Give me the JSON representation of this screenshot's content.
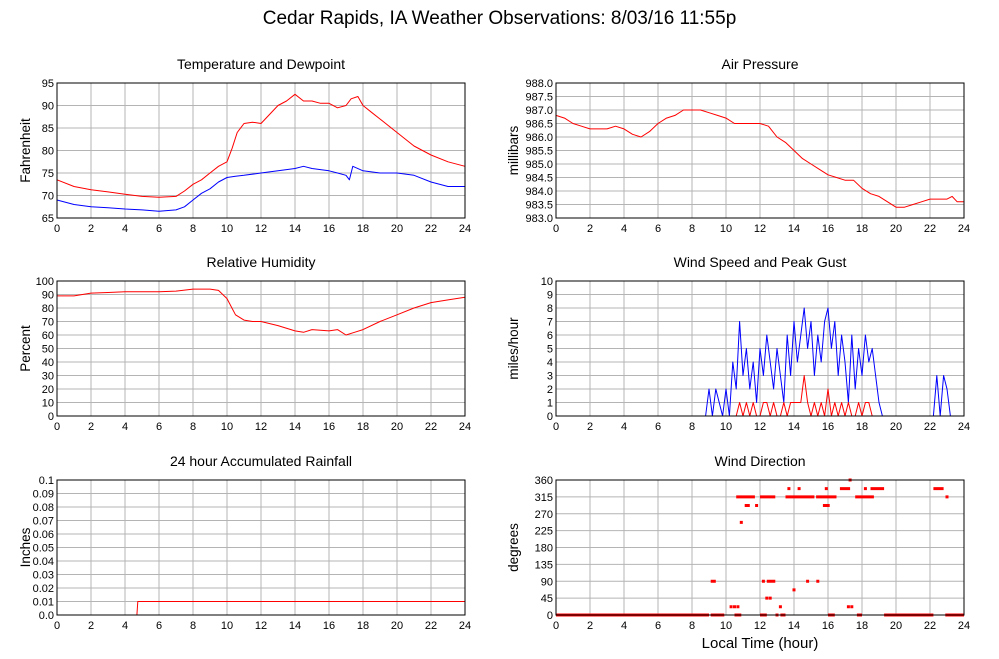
{
  "page": {
    "title": "Cedar Rapids, IA Weather Observations: 8/03/16 11:55p",
    "xlabel": "Local Time (hour)"
  },
  "colors": {
    "red": "#ff0000",
    "blue": "#0000ff",
    "grid": "#b4b4b4",
    "frame": "#000000"
  },
  "chart_data": [
    {
      "id": "temp",
      "type": "line",
      "title": "Temperature and Dewpoint",
      "ylabel": "Fahrenheit",
      "xlim": [
        0,
        24
      ],
      "ylim": [
        65,
        95
      ],
      "xticks": [
        0,
        2,
        4,
        6,
        8,
        10,
        12,
        14,
        16,
        18,
        20,
        22,
        24
      ],
      "yticks": [
        65,
        70,
        75,
        80,
        85,
        90,
        95
      ],
      "grid": true,
      "series": [
        {
          "color": "#ff0000",
          "x": [
            0,
            1,
            2,
            3,
            4,
            5,
            6,
            7,
            7.5,
            8,
            8.5,
            9,
            9.5,
            10,
            10.3,
            10.6,
            11,
            11.5,
            12,
            12.5,
            13,
            13.5,
            14,
            14.5,
            15,
            15.5,
            16,
            16.5,
            17,
            17.3,
            17.7,
            18,
            18.5,
            19,
            20,
            21,
            22,
            23,
            24
          ],
          "y": [
            73.5,
            72,
            71.3,
            70.8,
            70.3,
            69.8,
            69.6,
            69.8,
            71,
            72.5,
            73.5,
            75,
            76.5,
            77.5,
            80.5,
            84,
            86,
            86.3,
            86,
            88,
            90,
            91,
            92.5,
            91,
            91,
            90.5,
            90.5,
            89.5,
            90,
            91.5,
            92,
            90,
            88.5,
            87,
            84,
            81,
            79,
            77.5,
            76.5
          ]
        },
        {
          "color": "#0000ff",
          "x": [
            0,
            1,
            2,
            3,
            4,
            5,
            6,
            7,
            7.5,
            8,
            8.5,
            9,
            9.5,
            10,
            10.5,
            11,
            12,
            13,
            14,
            14.5,
            15,
            16,
            16.5,
            17,
            17.2,
            17.4,
            18,
            19,
            20,
            21,
            22,
            23,
            24
          ],
          "y": [
            69,
            68,
            67.5,
            67.3,
            67,
            66.8,
            66.5,
            66.8,
            67.5,
            69,
            70.5,
            71.5,
            73,
            74,
            74.3,
            74.5,
            75,
            75.5,
            76,
            76.5,
            76,
            75.5,
            75,
            74.5,
            73.5,
            76.5,
            75.5,
            75,
            75,
            74.5,
            73,
            72,
            72
          ]
        }
      ]
    },
    {
      "id": "pressure",
      "type": "line",
      "title": "Air Pressure",
      "ylabel": "millibars",
      "xlim": [
        0,
        24
      ],
      "ylim": [
        983,
        988
      ],
      "xticks": [
        0,
        2,
        4,
        6,
        8,
        10,
        12,
        14,
        16,
        18,
        20,
        22,
        24
      ],
      "yticks": [
        "983.0",
        "983.5",
        "984.0",
        "984.5",
        "985.0",
        "985.5",
        "986.0",
        "986.5",
        "987.0",
        "987.5",
        "988.0"
      ],
      "grid": true,
      "series": [
        {
          "color": "#ff0000",
          "x": [
            0,
            0.5,
            1,
            1.5,
            2,
            2.5,
            3,
            3.5,
            4,
            4.5,
            5,
            5.5,
            6,
            6.5,
            7,
            7.5,
            8,
            8.5,
            9,
            9.5,
            10,
            10.5,
            11,
            11.5,
            12,
            12.5,
            13,
            13.5,
            14,
            14.5,
            15,
            15.5,
            16,
            16.5,
            17,
            17.5,
            18,
            18.5,
            19,
            19.5,
            20,
            20.5,
            21,
            21.5,
            22,
            22.5,
            23,
            23.3,
            23.6,
            24
          ],
          "y": [
            986.8,
            986.7,
            986.5,
            986.4,
            986.3,
            986.3,
            986.3,
            986.4,
            986.3,
            986.1,
            986.0,
            986.2,
            986.5,
            986.7,
            986.8,
            987.0,
            987.0,
            987.0,
            986.9,
            986.8,
            986.7,
            986.5,
            986.5,
            986.5,
            986.5,
            986.4,
            986.0,
            985.8,
            985.5,
            985.2,
            985.0,
            984.8,
            984.6,
            984.5,
            984.4,
            984.4,
            984.1,
            983.9,
            983.8,
            983.6,
            983.4,
            983.4,
            983.5,
            983.6,
            983.7,
            983.7,
            983.7,
            983.8,
            983.6,
            983.6
          ]
        }
      ]
    },
    {
      "id": "humidity",
      "type": "line",
      "title": "Relative Humidity",
      "ylabel": "Percent",
      "xlim": [
        0,
        24
      ],
      "ylim": [
        0,
        100
      ],
      "xticks": [
        0,
        2,
        4,
        6,
        8,
        10,
        12,
        14,
        16,
        18,
        20,
        22,
        24
      ],
      "yticks": [
        0,
        10,
        20,
        30,
        40,
        50,
        60,
        70,
        80,
        90,
        100
      ],
      "grid": true,
      "series": [
        {
          "color": "#ff0000",
          "x": [
            0,
            1,
            2,
            3,
            4,
            5,
            6,
            7,
            8,
            9,
            9.5,
            10,
            10.5,
            11,
            11.5,
            12,
            13,
            14,
            14.5,
            15,
            16,
            16.5,
            17,
            17.5,
            18,
            19,
            20,
            21,
            22,
            23,
            24
          ],
          "y": [
            89,
            89,
            91,
            91.5,
            92,
            92,
            92,
            92.5,
            94,
            94,
            93,
            87,
            75,
            71,
            70,
            70,
            67,
            63,
            62,
            64,
            63,
            64,
            60,
            62,
            64,
            70,
            75,
            80,
            84,
            86,
            88
          ]
        }
      ]
    },
    {
      "id": "wind",
      "type": "line",
      "title": "Wind Speed and Peak Gust",
      "ylabel": "miles/hour",
      "xlim": [
        0,
        24
      ],
      "ylim": [
        0,
        10
      ],
      "xticks": [
        0,
        2,
        4,
        6,
        8,
        10,
        12,
        14,
        16,
        18,
        20,
        22,
        24
      ],
      "yticks": [
        0,
        1,
        2,
        3,
        4,
        5,
        6,
        7,
        8,
        9,
        10
      ],
      "grid": true,
      "series": [
        {
          "color": "#0000ff",
          "x": [
            0,
            8.8,
            9.0,
            9.2,
            9.4,
            9.6,
            9.8,
            10.0,
            10.2,
            10.4,
            10.6,
            10.8,
            11.0,
            11.2,
            11.4,
            11.6,
            11.8,
            12.0,
            12.2,
            12.4,
            12.6,
            12.8,
            13.0,
            13.2,
            13.4,
            13.6,
            13.8,
            14.0,
            14.2,
            14.4,
            14.6,
            14.8,
            15.0,
            15.2,
            15.4,
            15.6,
            15.8,
            16.0,
            16.2,
            16.4,
            16.6,
            16.8,
            17.0,
            17.2,
            17.4,
            17.6,
            17.8,
            18.0,
            18.2,
            18.4,
            18.6,
            18.8,
            19.0,
            19.2,
            19.4,
            22.2,
            22.4,
            22.6,
            22.8,
            23.0,
            23.2,
            24
          ],
          "y": [
            0,
            0,
            2,
            0,
            2,
            1,
            0,
            2,
            0,
            4,
            2,
            7,
            3,
            5,
            2,
            4,
            1,
            5,
            3,
            6,
            4,
            2,
            5,
            3,
            1,
            6,
            3,
            7,
            4,
            6,
            8,
            5,
            7,
            3,
            6,
            4,
            7,
            8,
            5,
            7,
            3,
            6,
            4,
            1,
            6,
            2,
            5,
            3,
            6,
            4,
            5,
            3,
            1,
            0,
            0,
            0,
            3,
            0,
            3,
            2,
            0,
            0
          ]
        },
        {
          "color": "#ff0000",
          "x": [
            0,
            10.6,
            10.8,
            11.0,
            11.2,
            11.4,
            11.6,
            11.8,
            12.0,
            12.2,
            12.4,
            12.6,
            12.8,
            13.0,
            13.2,
            13.4,
            13.6,
            13.8,
            14.0,
            14.2,
            14.4,
            14.6,
            14.8,
            15.0,
            15.2,
            15.4,
            15.6,
            15.8,
            16.0,
            16.2,
            16.4,
            16.6,
            16.8,
            17.0,
            17.2,
            17.4,
            17.6,
            17.8,
            18.0,
            18.2,
            18.4,
            18.6,
            18.8,
            24
          ],
          "y": [
            0,
            0,
            1,
            0,
            1,
            0,
            1,
            0,
            0,
            1,
            1,
            0,
            1,
            0,
            0,
            1,
            0,
            1,
            1,
            1,
            1,
            3,
            1,
            0,
            1,
            0,
            1,
            0,
            2,
            0,
            1,
            0,
            1,
            0,
            1,
            0,
            0,
            1,
            0,
            1,
            1,
            0,
            0,
            0
          ]
        }
      ]
    },
    {
      "id": "rain",
      "type": "line",
      "title": "24 hour Accumulated Rainfall",
      "ylabel": "Inches",
      "xlim": [
        0,
        24
      ],
      "ylim": [
        0,
        0.1
      ],
      "xticks": [
        0,
        2,
        4,
        6,
        8,
        10,
        12,
        14,
        16,
        18,
        20,
        22,
        24
      ],
      "yticks": [
        "0.0",
        "0.01",
        "0.02",
        "0.03",
        "0.04",
        "0.05",
        "0.06",
        "0.07",
        "0.08",
        "0.09",
        "0.1"
      ],
      "grid": true,
      "series": [
        {
          "color": "#ff0000",
          "x": [
            0,
            4.7,
            4.75,
            24
          ],
          "y": [
            0,
            0,
            0.01,
            0.01
          ]
        }
      ]
    },
    {
      "id": "direction",
      "type": "scatter",
      "title": "Wind Direction",
      "ylabel": "degrees",
      "xlim": [
        0,
        24
      ],
      "ylim": [
        0,
        360
      ],
      "xticks": [
        0,
        2,
        4,
        6,
        8,
        10,
        12,
        14,
        16,
        18,
        20,
        22,
        24
      ],
      "yticks": [
        0,
        45,
        90,
        135,
        180,
        225,
        270,
        315,
        360
      ],
      "grid": true,
      "series": [
        {
          "color": "#ff0000",
          "segments": [
            {
              "x0": 0,
              "x1": 9.0,
              "y": 0
            },
            {
              "x0": 9.1,
              "x1": 9.9,
              "y": 0
            },
            {
              "x0": 10.5,
              "x1": 10.9,
              "y": 0
            },
            {
              "x0": 12.0,
              "x1": 12.4,
              "y": 0
            },
            {
              "x0": 13.2,
              "x1": 13.5,
              "y": 0
            },
            {
              "x0": 16.0,
              "x1": 16.4,
              "y": 0
            },
            {
              "x0": 17.7,
              "x1": 18.0,
              "y": 0
            },
            {
              "x0": 19.3,
              "x1": 22.2,
              "y": 0
            },
            {
              "x0": 22.9,
              "x1": 24,
              "y": 0
            },
            {
              "x0": 10.6,
              "x1": 11.7,
              "y": 315
            },
            {
              "x0": 12.0,
              "x1": 12.9,
              "y": 315
            },
            {
              "x0": 13.5,
              "x1": 15.2,
              "y": 315
            },
            {
              "x0": 15.3,
              "x1": 16.5,
              "y": 315
            },
            {
              "x0": 17.6,
              "x1": 18.7,
              "y": 315
            },
            {
              "x0": 18.5,
              "x1": 19.3,
              "y": 337
            },
            {
              "x0": 22.2,
              "x1": 22.8,
              "y": 337
            },
            {
              "x0": 16.7,
              "x1": 17.3,
              "y": 337
            },
            {
              "x0": 9.1,
              "x1": 9.4,
              "y": 90
            },
            {
              "x0": 12.4,
              "x1": 12.9,
              "y": 90
            },
            {
              "x0": 11.1,
              "x1": 11.4,
              "y": 292
            },
            {
              "x0": 15.7,
              "x1": 16.1,
              "y": 292
            }
          ],
          "points": [
            [
              10.3,
              22
            ],
            [
              10.5,
              22
            ],
            [
              10.7,
              22
            ],
            [
              10.9,
              247
            ],
            [
              11.8,
              292
            ],
            [
              12.2,
              90
            ],
            [
              12.4,
              45
            ],
            [
              12.6,
              45
            ],
            [
              13.2,
              22
            ],
            [
              13.7,
              337
            ],
            [
              14.0,
              67
            ],
            [
              14.3,
              337
            ],
            [
              14.8,
              90
            ],
            [
              15.4,
              90
            ],
            [
              15.9,
              337
            ],
            [
              17.2,
              22
            ],
            [
              17.4,
              22
            ],
            [
              17.3,
              360
            ],
            [
              18.2,
              337
            ],
            [
              23.0,
              315
            ],
            [
              13.0,
              0
            ],
            [
              9.7,
              0
            ]
          ]
        }
      ]
    }
  ]
}
